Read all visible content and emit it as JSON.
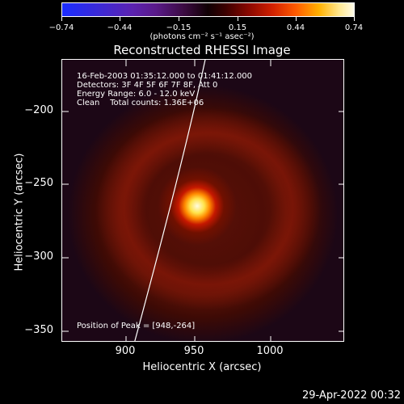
{
  "colorbar": {
    "ticks": [
      "−0.74",
      "−0.44",
      "−0.15",
      "0.15",
      "0.44",
      "0.74"
    ],
    "units": "(photons cm⁻² s⁻¹ asec⁻²)"
  },
  "title": "Reconstructed RHESSI Image",
  "annotations": {
    "line1": "16-Feb-2003 01:35:12.000 to 01:41:12.000",
    "line2": "Detectors: 3F 4F 5F 6F 7F 8F, Att 0",
    "line3": "Energy Range: 6.0 - 12.0 keV",
    "line4": "Clean    Total counts: 1.36E+06",
    "peak": "Position of Peak = [948,-264]"
  },
  "axes": {
    "xlabel": "Heliocentric X (arcsec)",
    "ylabel": "Heliocentric Y (arcsec)",
    "xticks": [
      "900",
      "950",
      "1000"
    ],
    "yticks": [
      "−200",
      "−250",
      "−300",
      "−350"
    ]
  },
  "timestamp": "29-Apr-2022 00:32",
  "colors": {
    "limb": "#ffffff",
    "frame": "#ffffff"
  }
}
